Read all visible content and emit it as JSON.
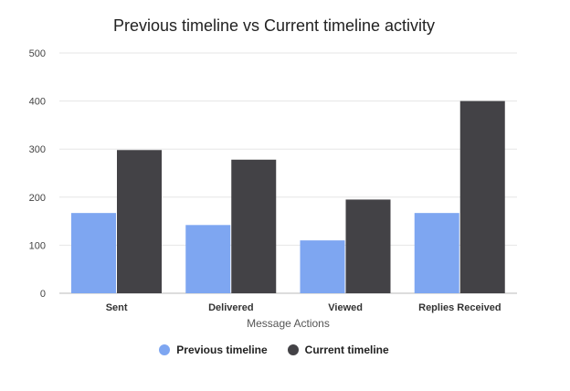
{
  "chart_data": {
    "type": "bar",
    "title": "Previous timeline vs Current timeline activity",
    "xlabel": "Message Actions",
    "ylabel": "",
    "categories": [
      "Sent",
      "Delivered",
      "Viewed",
      "Replies Received"
    ],
    "series": [
      {
        "name": "Previous timeline",
        "values": [
          167,
          142,
          110,
          167
        ],
        "color": "#7ea6f1"
      },
      {
        "name": "Current timeline",
        "values": [
          298,
          278,
          195,
          400
        ],
        "color": "#434246"
      }
    ],
    "ylim": [
      0,
      500
    ],
    "yticks": [
      0,
      100,
      200,
      300,
      400,
      500
    ],
    "grid": true,
    "legend_position": "bottom"
  }
}
